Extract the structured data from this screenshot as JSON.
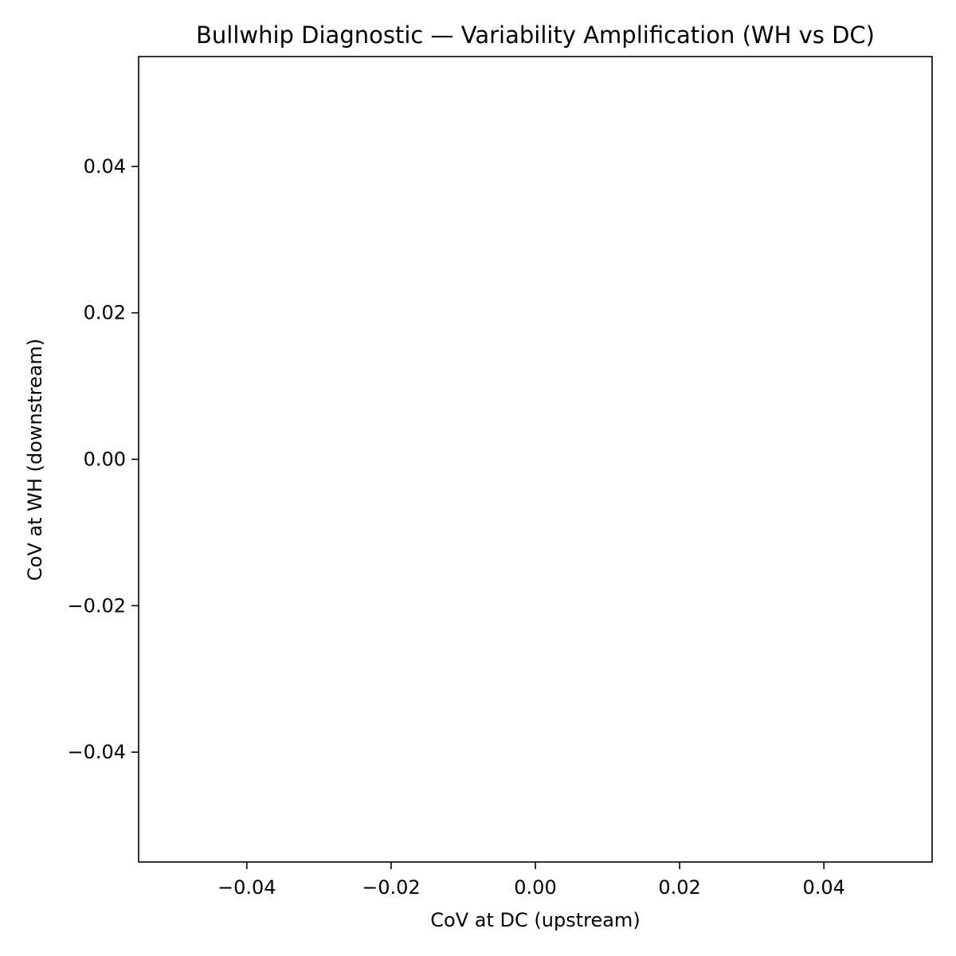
{
  "chart_data": {
    "type": "scatter",
    "title": "Bullwhip Diagnostic — Variability Amplification (WH vs DC)",
    "xlabel": "CoV at DC (upstream)",
    "ylabel": "CoV at WH (downstream)",
    "xlim": [
      -0.055,
      0.055
    ],
    "ylim": [
      -0.055,
      0.055
    ],
    "x_ticks": [
      -0.04,
      -0.02,
      0.0,
      0.02,
      0.04
    ],
    "x_tick_labels": [
      "−0.04",
      "−0.02",
      "0.00",
      "0.02",
      "0.04"
    ],
    "y_ticks": [
      -0.04,
      -0.02,
      0.0,
      0.02,
      0.04
    ],
    "y_tick_labels": [
      "−0.04",
      "−0.02",
      "0.00",
      "0.02",
      "0.04"
    ],
    "grid": false,
    "series": [
      {
        "x": [],
        "y": []
      }
    ]
  }
}
